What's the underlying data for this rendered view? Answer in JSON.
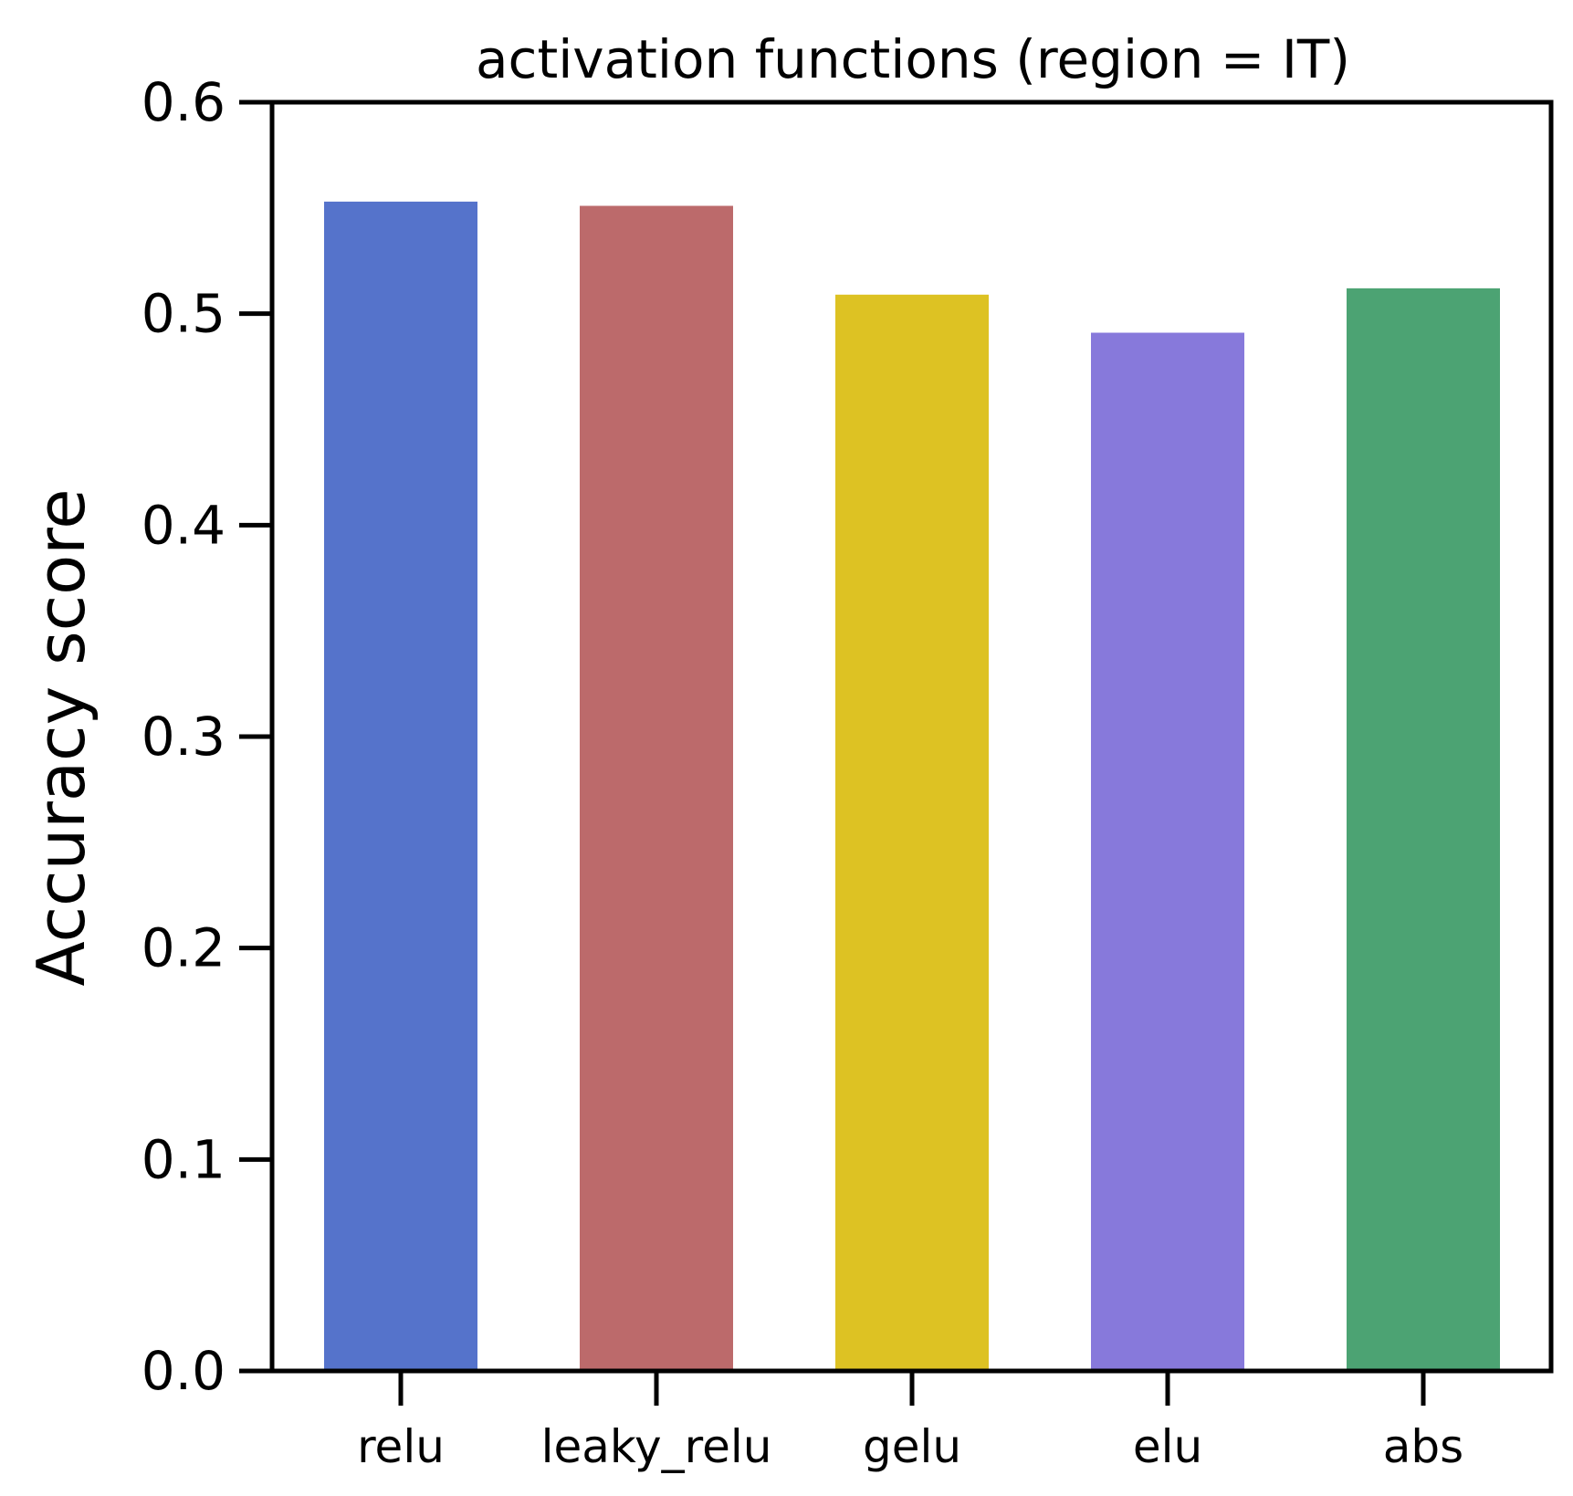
{
  "chart_data": {
    "type": "bar",
    "title": "activation functions (region = IT)",
    "xlabel": "",
    "ylabel": "Accuracy score",
    "categories": [
      "relu",
      "leaky_relu",
      "gelu",
      "elu",
      "abs"
    ],
    "values": [
      0.553,
      0.551,
      0.509,
      0.491,
      0.512
    ],
    "colors": [
      "#5573CB",
      "#BC6A6B",
      "#DDC223",
      "#8779DB",
      "#4CA373"
    ],
    "ylim": [
      0,
      0.6
    ],
    "yticks": [
      "0.0",
      "0.1",
      "0.2",
      "0.3",
      "0.4",
      "0.5",
      "0.6"
    ],
    "grid": false,
    "legend": "none"
  }
}
